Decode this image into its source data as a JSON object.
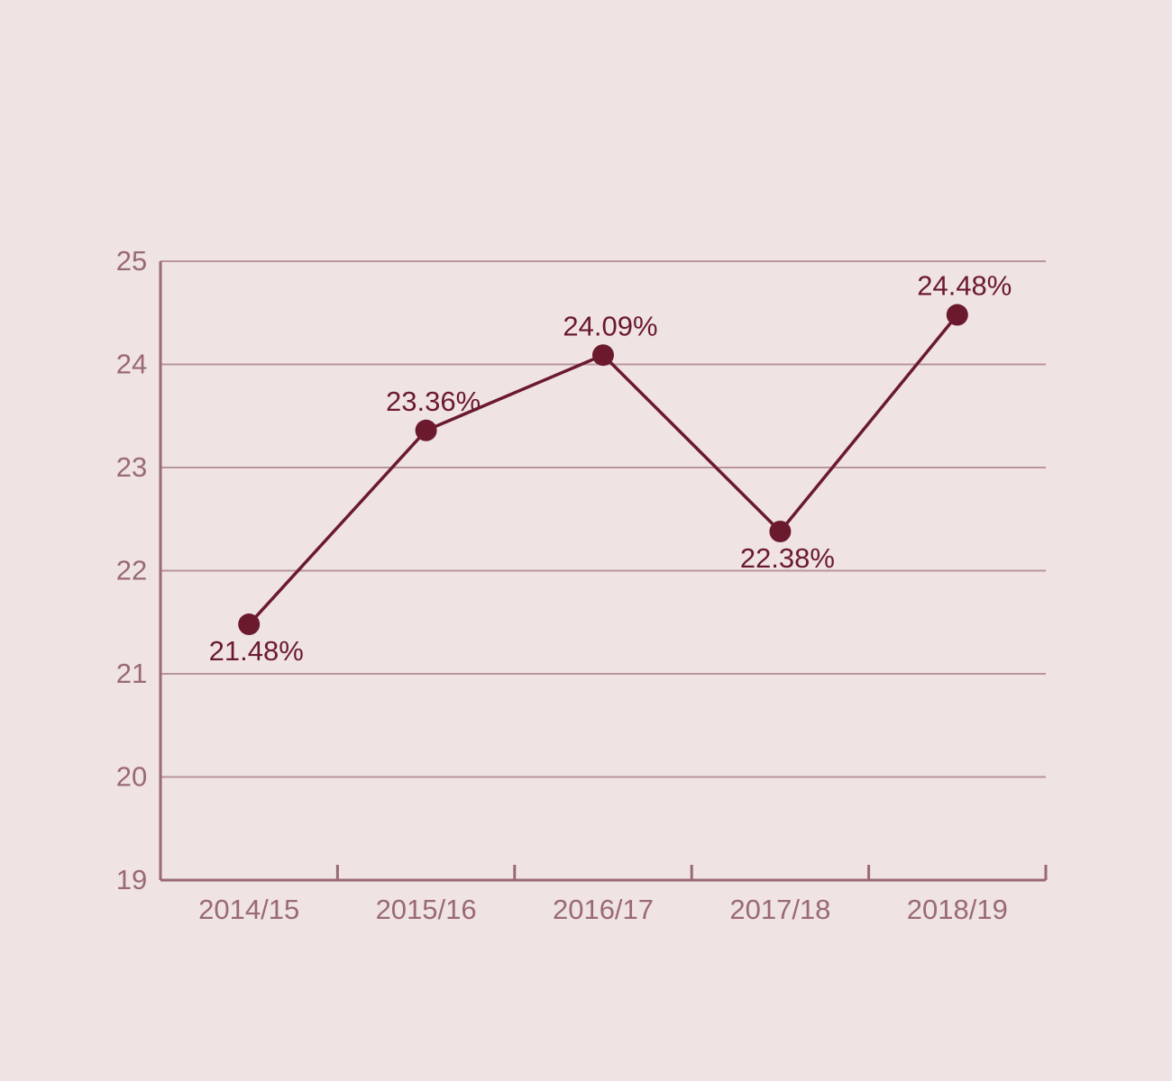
{
  "chart_data": {
    "type": "line",
    "categories": [
      "2014/15",
      "2015/16",
      "2016/17",
      "2017/18",
      "2018/19"
    ],
    "values": [
      21.48,
      23.36,
      24.09,
      22.38,
      24.48
    ],
    "value_labels": [
      "21.48%",
      "23.36%",
      "24.09%",
      "22.38%",
      "24.48%"
    ],
    "color": "#6b1a2e",
    "ylim": [
      19,
      25
    ],
    "yticks": [
      19,
      20,
      21,
      22,
      23,
      24,
      25
    ],
    "grid": true
  }
}
